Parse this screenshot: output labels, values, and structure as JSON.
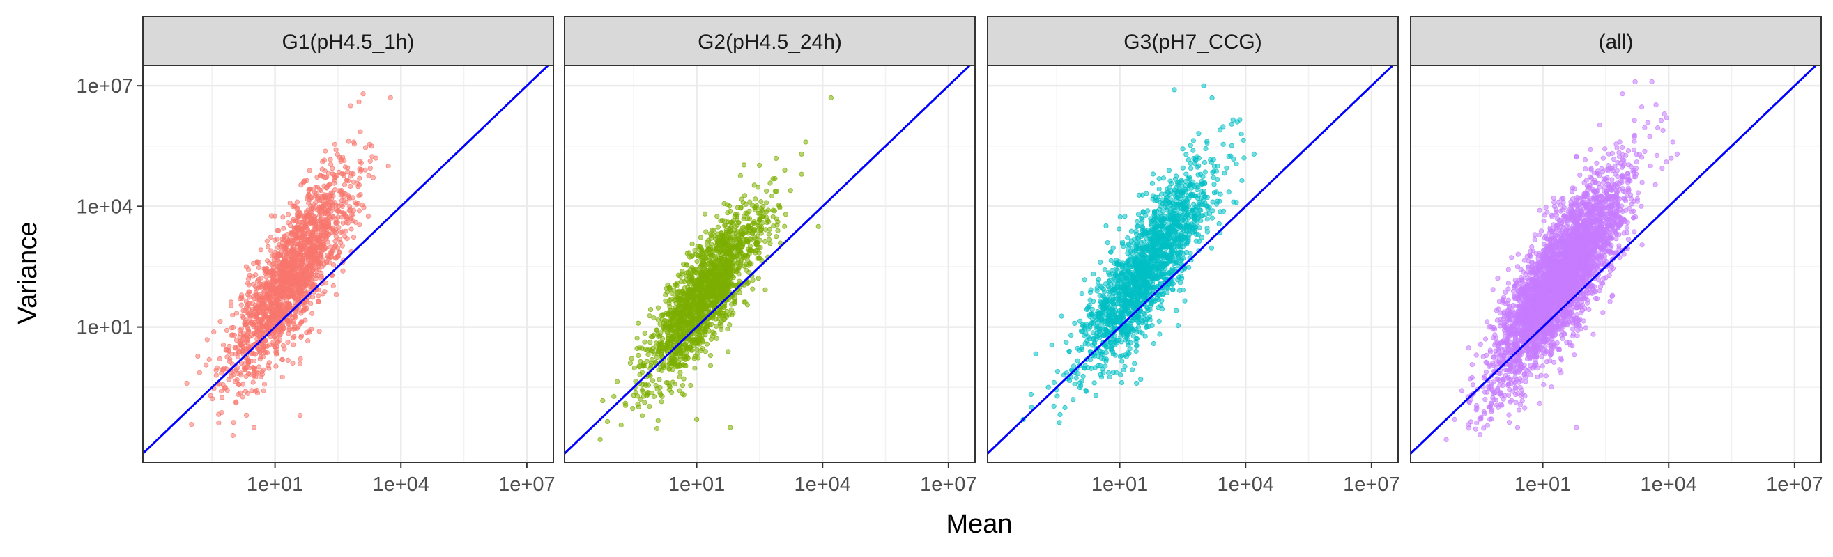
{
  "chart_data": {
    "type": "scatter",
    "layout": "faceted-small-multiples",
    "xlabel": "Mean",
    "ylabel": "Variance",
    "x_scale": "log10",
    "y_scale": "log10",
    "xlim": [
      0.0071,
      43000000
    ],
    "ylim": [
      0.0043,
      32000000
    ],
    "x_ticks": [
      10,
      10000,
      10000000
    ],
    "x_tick_labels": [
      "1e+01",
      "1e+04",
      "1e+07"
    ],
    "y_ticks": [
      10,
      10000,
      10000000
    ],
    "y_tick_labels": [
      "1e+01",
      "1e+04",
      "1e+07"
    ],
    "grid": true,
    "reference_line": {
      "type": "identity",
      "slope": 1,
      "intercept_log10": 0,
      "color": "#0000ff"
    },
    "panels": [
      {
        "strip_label": "G1(pH4.5_1h)",
        "color": "#f8766d",
        "cloud": {
          "center_log10": [
            1.4,
            2.3
          ],
          "sd_log10": [
            0.75,
            1.3
          ],
          "count": 1800,
          "x_range_log10": [
            -1.2,
            3.8
          ],
          "y_range_log10": [
            -1.8,
            7.2
          ]
        },
        "points": [
          [
            0.3,
            -0.6
          ],
          [
            -0.4,
            -0.2
          ],
          [
            0.0,
            -0.2
          ],
          [
            0.5,
            -1.5
          ],
          [
            1.6,
            -1.2
          ],
          [
            -1.1,
            -0.4
          ],
          [
            3.1,
            6.8
          ],
          [
            3.0,
            6.6
          ],
          [
            2.8,
            6.5
          ],
          [
            3.3,
            5.5
          ],
          [
            3.4,
            5.2
          ],
          [
            3.7,
            5.0
          ]
        ]
      },
      {
        "strip_label": "G2(pH4.5_24h)",
        "color": "#7cae00",
        "cloud": {
          "center_log10": [
            1.2,
            1.8
          ],
          "sd_log10": [
            0.7,
            1.1
          ],
          "count": 1800,
          "x_range_log10": [
            -1.3,
            4.2
          ],
          "y_range_log10": [
            -1.8,
            6.7
          ]
        },
        "points": [
          [
            -1.3,
            -1.8
          ],
          [
            -0.7,
            -0.9
          ],
          [
            -0.5,
            -0.7
          ],
          [
            1.8,
            -1.5
          ],
          [
            1.0,
            -1.3
          ],
          [
            3.5,
            4.8
          ],
          [
            3.6,
            5.6
          ],
          [
            3.5,
            5.3
          ],
          [
            4.2,
            6.7
          ],
          [
            3.9,
            3.5
          ],
          [
            3.1,
            4.9
          ]
        ]
      },
      {
        "strip_label": "G3(pH7_CCG)",
        "color": "#00bfc4",
        "cloud": {
          "center_log10": [
            1.6,
            2.4
          ],
          "sd_log10": [
            0.8,
            1.25
          ],
          "count": 1800,
          "x_range_log10": [
            -1.3,
            4.2
          ],
          "y_range_log10": [
            -1.4,
            7.2
          ]
        },
        "points": [
          [
            -1.3,
            -1.3
          ],
          [
            -1.1,
            -1.0
          ],
          [
            -0.7,
            -0.5
          ],
          [
            1.5,
            -0.3
          ],
          [
            1.4,
            -0.4
          ],
          [
            2.3,
            6.9
          ],
          [
            3.0,
            7.0
          ],
          [
            3.2,
            6.7
          ],
          [
            3.8,
            6.1
          ],
          [
            3.9,
            5.8
          ],
          [
            4.2,
            5.3
          ],
          [
            3.4,
            4.3
          ]
        ]
      },
      {
        "strip_label": "(all)",
        "color": "#c77cff",
        "cloud": {
          "center_log10": [
            1.4,
            2.2
          ],
          "sd_log10": [
            0.8,
            1.3
          ],
          "count": 3600,
          "x_range_log10": [
            -1.3,
            4.2
          ],
          "y_range_log10": [
            -1.8,
            7.2
          ]
        },
        "points": [
          [
            -1.3,
            -1.8
          ],
          [
            -1.1,
            -1.3
          ],
          [
            -0.7,
            -0.7
          ],
          [
            0.4,
            -1.5
          ],
          [
            1.8,
            -1.5
          ],
          [
            2.9,
            6.8
          ],
          [
            3.2,
            7.1
          ],
          [
            3.6,
            7.1
          ],
          [
            3.9,
            6.3
          ],
          [
            4.1,
            5.6
          ],
          [
            4.2,
            5.3
          ]
        ]
      }
    ]
  }
}
